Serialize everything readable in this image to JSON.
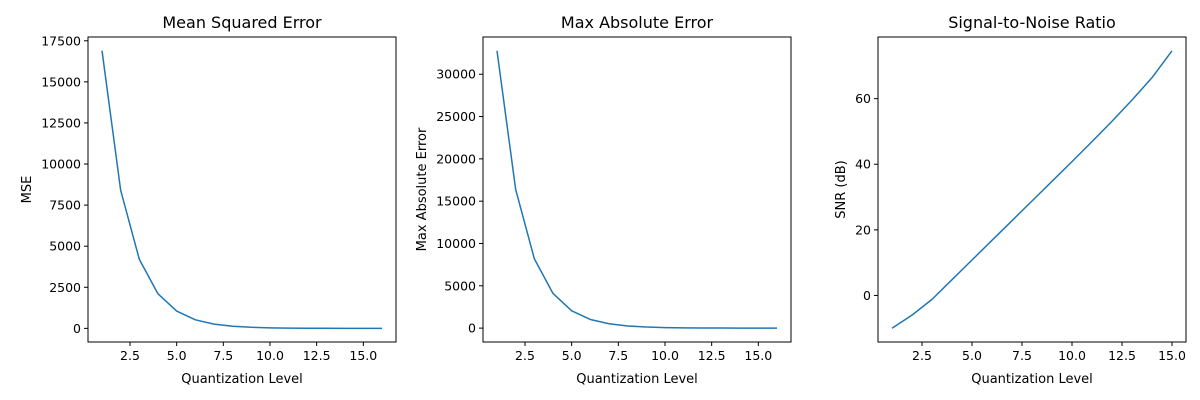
{
  "chart_data": [
    {
      "type": "line",
      "title": "Mean Squared Error",
      "xlabel": "Quantization Level",
      "ylabel": "MSE",
      "color": "#1f77b4",
      "xlim": [
        0.25,
        16.75
      ],
      "ylim": [
        -830,
        17730
      ],
      "xticks": [
        2.5,
        5.0,
        7.5,
        10.0,
        12.5,
        15.0
      ],
      "xtick_labels": [
        "2.5",
        "5.0",
        "7.5",
        "10.0",
        "12.5",
        "15.0"
      ],
      "yticks": [
        0,
        2500,
        5000,
        7500,
        10000,
        12500,
        15000,
        17500
      ],
      "ytick_labels": [
        "0",
        "2500",
        "5000",
        "7500",
        "10000",
        "12500",
        "15000",
        "17500"
      ],
      "x": [
        1,
        2,
        3,
        4,
        5,
        6,
        7,
        8,
        9,
        10,
        11,
        12,
        13,
        14,
        15,
        16
      ],
      "y": [
        16900,
        8400,
        4200,
        2100,
        1050,
        520,
        260,
        130,
        65,
        33,
        16,
        8,
        4,
        2,
        1,
        0.5
      ]
    },
    {
      "type": "line",
      "title": "Max Absolute Error",
      "xlabel": "Quantization Level",
      "ylabel": "Max Absolute Error",
      "color": "#1f77b4",
      "xlim": [
        0.25,
        16.75
      ],
      "ylim": [
        -1640,
        34400
      ],
      "xticks": [
        2.5,
        5.0,
        7.5,
        10.0,
        12.5,
        15.0
      ],
      "xtick_labels": [
        "2.5",
        "5.0",
        "7.5",
        "10.0",
        "12.5",
        "15.0"
      ],
      "yticks": [
        0,
        5000,
        10000,
        15000,
        20000,
        25000,
        30000
      ],
      "ytick_labels": [
        "0",
        "5000",
        "10000",
        "15000",
        "20000",
        "25000",
        "30000"
      ],
      "x": [
        1,
        2,
        3,
        4,
        5,
        6,
        7,
        8,
        9,
        10,
        11,
        12,
        13,
        14,
        15,
        16
      ],
      "y": [
        32768,
        16384,
        8192,
        4096,
        2048,
        1024,
        512,
        256,
        128,
        64,
        32,
        16,
        8,
        4,
        2,
        1
      ]
    },
    {
      "type": "line",
      "title": "Signal-to-Noise Ratio",
      "xlabel": "Quantization Level",
      "ylabel": "SNR (dB)",
      "color": "#1f77b4",
      "xlim": [
        0.3,
        15.7
      ],
      "ylim": [
        -14.2,
        78.8
      ],
      "xticks": [
        2.5,
        5.0,
        7.5,
        10.0,
        12.5,
        15.0
      ],
      "xtick_labels": [
        "2.5",
        "5.0",
        "7.5",
        "10.0",
        "12.5",
        "15.0"
      ],
      "yticks": [
        0,
        20,
        40,
        60
      ],
      "ytick_labels": [
        "0",
        "20",
        "40",
        "60"
      ],
      "x": [
        1,
        2,
        3,
        4,
        5,
        6,
        7,
        8,
        9,
        10,
        11,
        12,
        13,
        14,
        15
      ],
      "y": [
        -10,
        -6,
        -1.2,
        4.8,
        10.8,
        16.8,
        22.8,
        28.8,
        34.8,
        40.8,
        46.9,
        53.1,
        59.6,
        66.4,
        74.6
      ]
    }
  ]
}
